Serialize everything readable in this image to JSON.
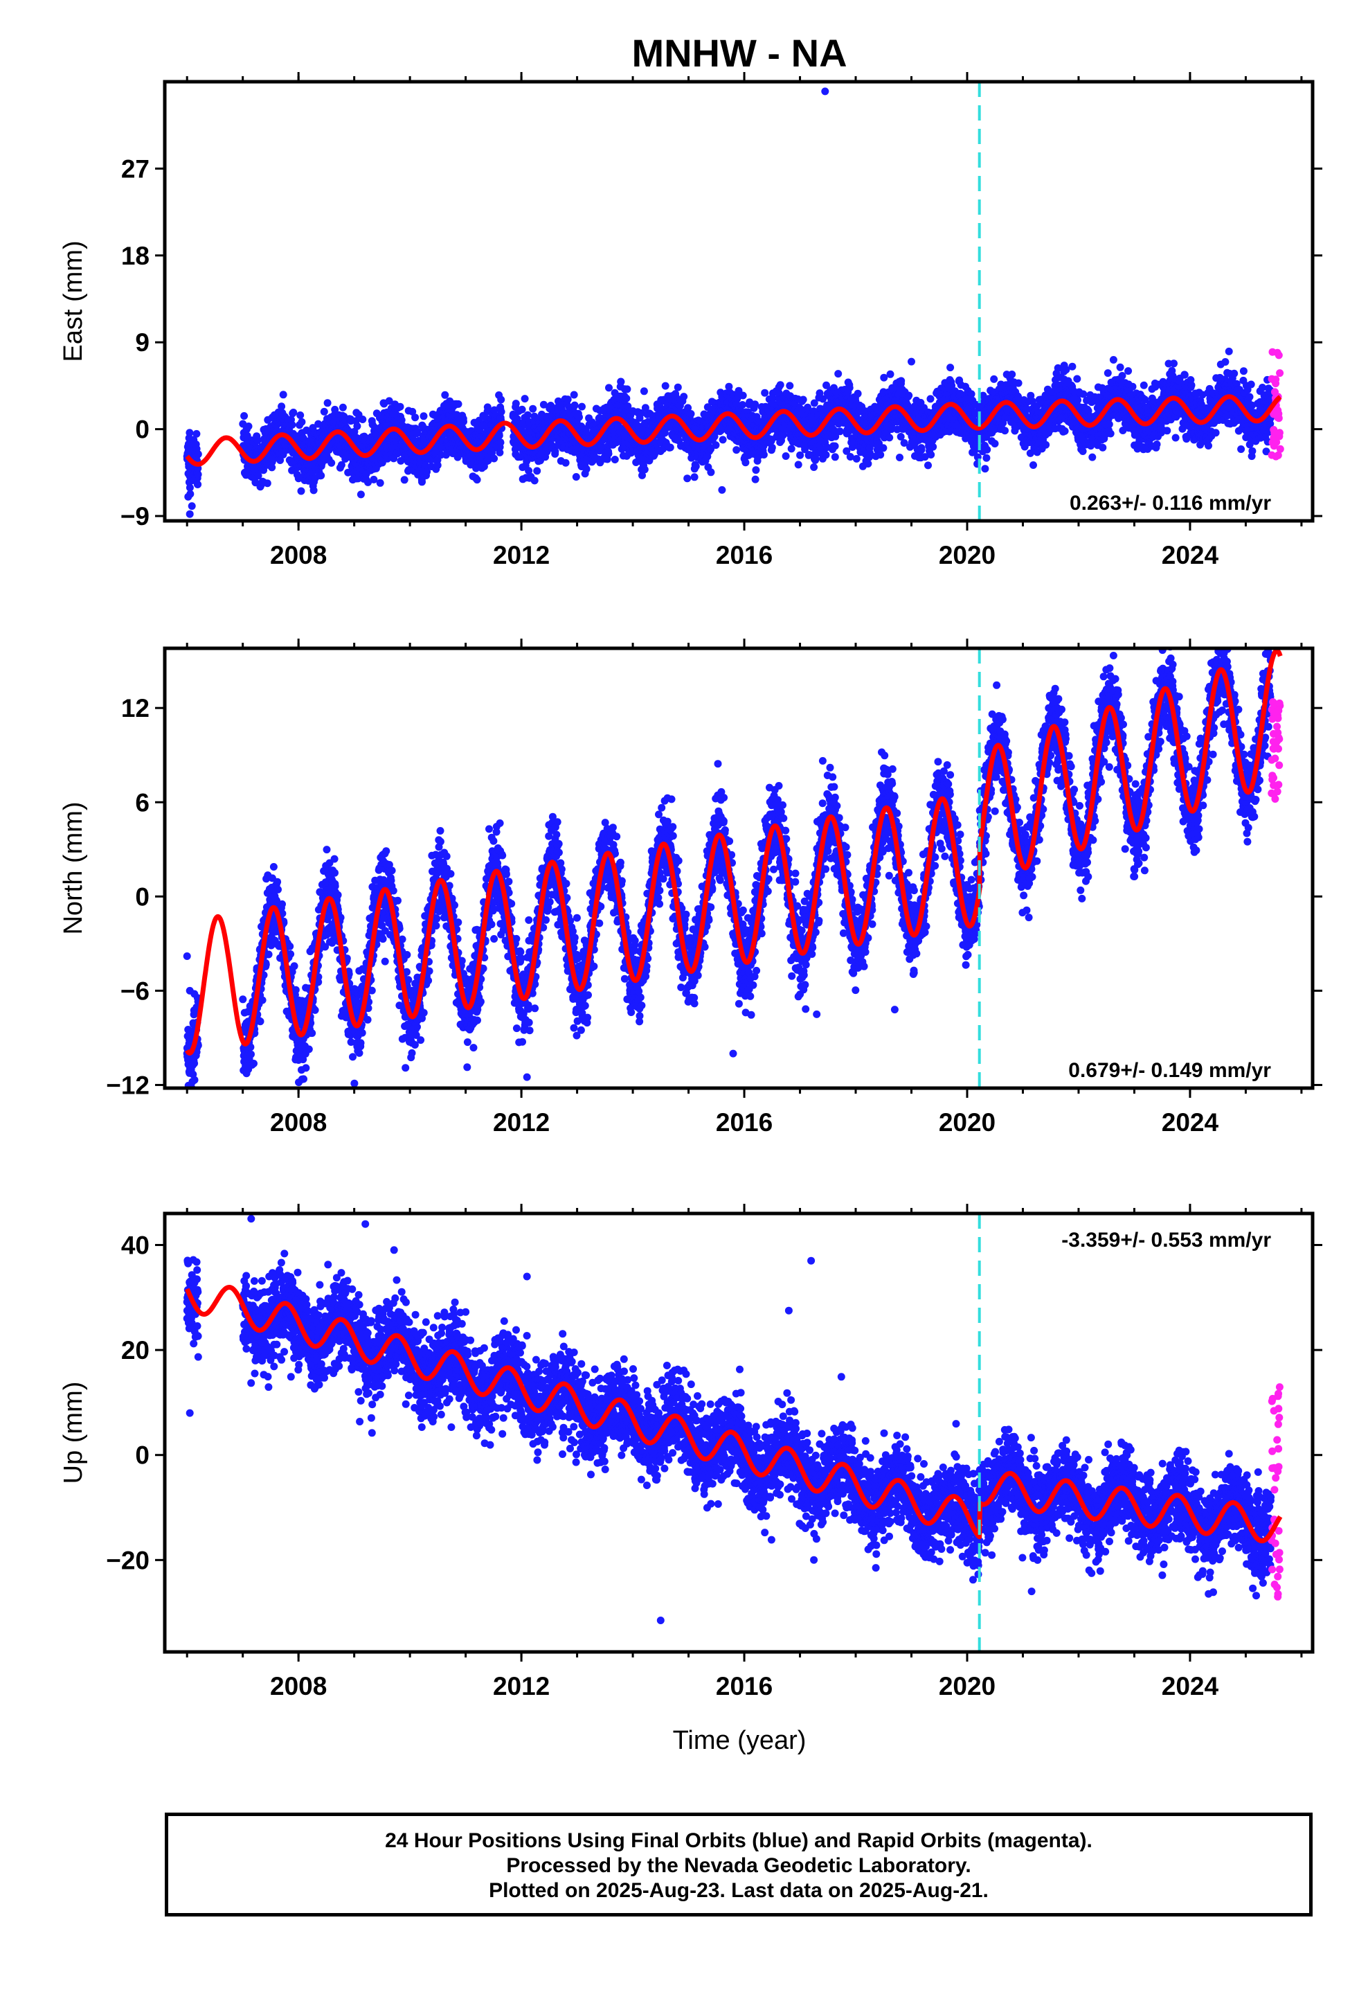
{
  "title": "MNHW - NA",
  "x_axis_label": "Time (year)",
  "footer": {
    "line1": "24 Hour Positions Using Final Orbits (blue) and Rapid Orbits (magenta).",
    "line2": "Processed by the Nevada Geodetic Laboratory.",
    "line3": "Plotted on 2025-Aug-23. Last data on 2025-Aug-21."
  },
  "colors": {
    "final_orbits": "#1a1aff",
    "rapid_orbits": "#ff22ee",
    "model_fit": "#ff0000",
    "event_marker": "#33dddd"
  },
  "chart_data": [
    {
      "type": "scatter",
      "component": "east",
      "ylabel": "East (mm)",
      "xlim": [
        2005.6,
        2026.2
      ],
      "ylim": [
        -9.5,
        36
      ],
      "yticks": [
        -9,
        0,
        9,
        18,
        27
      ],
      "xticks": [
        2008,
        2012,
        2016,
        2020,
        2024
      ],
      "grid": false,
      "event_line_x": 2020.22,
      "rate_label": "0.263+/- 0.116 mm/yr",
      "rate_label_position": "bottom-right",
      "model": {
        "amplitude": 1.3,
        "phase_peak": 0.7,
        "trend": [
          [
            2006.0,
            -2.4
          ],
          [
            2011.6,
            -0.7
          ],
          [
            2020.2,
            1.4
          ],
          [
            2025.6,
            2.2
          ]
        ],
        "steps": []
      },
      "noise_sd": 1.4,
      "gaps": [
        [
          2006.2,
          2007.0
        ],
        [
          2011.65,
          2011.85
        ]
      ],
      "data_start": 2006.0,
      "data_end": 2025.45,
      "rapid": {
        "start": 2025.46,
        "end": 2025.62,
        "min": -3.0,
        "max": 8.0
      },
      "outliers": [
        [
          2006.05,
          -8.8
        ],
        [
          2006.02,
          -7.0
        ],
        [
          2006.04,
          -5.5
        ],
        [
          2017.45,
          35.0
        ],
        [
          2015.6,
          -6.3
        ],
        [
          2016.2,
          -5.2
        ],
        [
          2019.0,
          7.0
        ]
      ]
    },
    {
      "type": "scatter",
      "component": "north",
      "ylabel": "North (mm)",
      "xlim": [
        2005.6,
        2026.2
      ],
      "ylim": [
        -12.2,
        15.8
      ],
      "yticks": [
        -12,
        -6,
        0,
        6,
        12
      ],
      "xticks": [
        2008,
        2012,
        2016,
        2020,
        2024
      ],
      "grid": false,
      "event_line_x": 2020.22,
      "rate_label": "0.679+/- 0.149 mm/yr",
      "rate_label_position": "bottom-right",
      "model": {
        "amplitude": 4.2,
        "phase_peak": 0.55,
        "trend": [
          [
            2006.0,
            -5.8
          ],
          [
            2020.2,
            2.4
          ],
          [
            2025.6,
            8.9
          ]
        ],
        "steps": [
          [
            2020.22,
            2.6
          ]
        ]
      },
      "noise_sd": 1.3,
      "gaps": [
        [
          2006.2,
          2007.0
        ]
      ],
      "data_start": 2006.0,
      "data_end": 2025.45,
      "rapid": {
        "start": 2025.46,
        "end": 2025.62,
        "min": 6.0,
        "max": 12.5
      },
      "outliers": [
        [
          2007.1,
          -11.0
        ],
        [
          2012.1,
          -11.5
        ],
        [
          2015.8,
          -10.0
        ],
        [
          2017.3,
          -7.5
        ],
        [
          2018.7,
          -7.2
        ],
        [
          2006.0,
          -3.8
        ],
        [
          2006.05,
          -6.0
        ]
      ]
    },
    {
      "type": "scatter",
      "component": "up",
      "ylabel": "Up (mm)",
      "xlim": [
        2005.6,
        2026.2
      ],
      "ylim": [
        -37.5,
        46
      ],
      "yticks": [
        -20,
        0,
        20,
        40
      ],
      "xticks": [
        2008,
        2012,
        2016,
        2020,
        2024
      ],
      "grid": false,
      "event_line_x": 2020.22,
      "rate_label": "-3.359+/- 0.553 mm/yr",
      "rate_label_position": "top-right",
      "model": {
        "amplitude": 3.3,
        "phase_peak": 0.78,
        "trend": [
          [
            2006.0,
            31.0
          ],
          [
            2020.2,
            -12.5
          ],
          [
            2025.6,
            -20.0
          ]
        ],
        "steps": [
          [
            2020.22,
            6.5
          ]
        ]
      },
      "noise_sd": 4.0,
      "gaps": [
        [
          2006.2,
          2007.0
        ]
      ],
      "data_start": 2006.0,
      "data_end": 2025.45,
      "rapid": {
        "start": 2025.46,
        "end": 2025.62,
        "min": -29.0,
        "max": 13.0
      },
      "outliers": [
        [
          2014.5,
          -31.5
        ],
        [
          2017.2,
          37.0
        ],
        [
          2009.2,
          44.0
        ],
        [
          2007.15,
          45.0
        ],
        [
          2016.8,
          27.5
        ],
        [
          2006.05,
          8.0
        ],
        [
          2006.0,
          26.0
        ],
        [
          2012.1,
          34.0
        ]
      ]
    }
  ]
}
